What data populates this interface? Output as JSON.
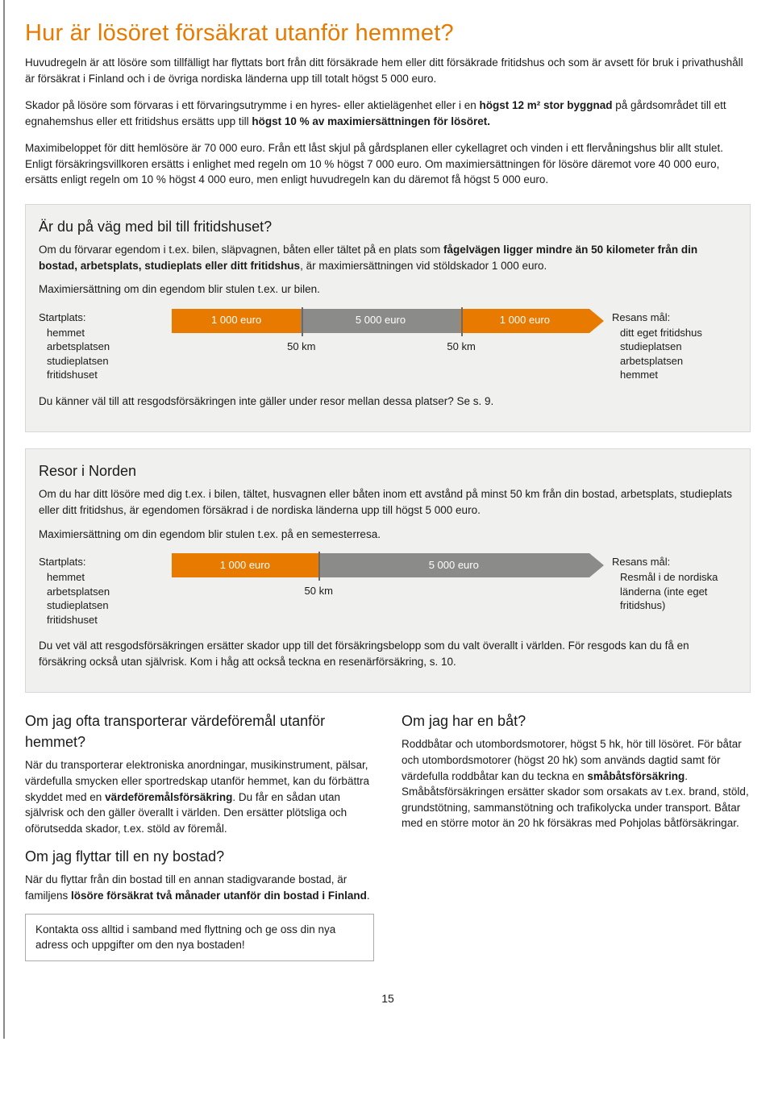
{
  "title": "Hur är lösöret försäkrat utanför hemmet?",
  "intro": {
    "p1": "Huvudregeln är att lösöre som tillfälligt har flyttats bort från ditt försäkrade hem eller ditt försäkrade fritidshus och som är avsett för bruk i privathushåll är försäkrat i Finland och i de övriga nordiska länderna upp till totalt högst 5 000 euro.",
    "p2_a": "Skador på lösöre som förvaras i ett förvaringsutrymme i en hyres- eller aktielägenhet eller i en ",
    "p2_b": "högst 12 m² stor byggnad",
    "p2_c": " på gårdsområdet till ett egnahemshus eller ett fritidshus ersätts upp till ",
    "p2_d": "högst 10 % av maximiersättningen för lösöret.",
    "p3": "Maximibeloppet för ditt hemlösöre är 70 000 euro. Från ett låst skjul på gårdsplanen eller cykellagret och vinden i ett flervåningshus blir allt stulet. Enligt försäkringsvillkoren ersätts i enlighet med regeln om 10 % högst 7 000 euro. Om maximiersättningen för lösöre däremot vore 40 000 euro, ersätts enligt regeln om 10 % högst 4 000 euro, men enligt huvudregeln kan du däremot få högst 5 000 euro."
  },
  "panel1": {
    "heading": "Är du på väg med bil till fritidshuset?",
    "p1_a": "Om du förvarar egendom i t.ex. bilen, släpvagnen, båten eller tältet på en plats som ",
    "p1_b": "fågelvägen ligger mindre än 50 kilometer från din bostad, arbetsplats, studieplats eller ditt fritidshus",
    "p1_c": ", är maximiersättningen vid stöldskador 1 000 euro.",
    "sub": "Maximiersättning om din egendom blir stulen t.ex. ur bilen.",
    "left": {
      "h": "Startplats:",
      "items": [
        "hemmet",
        "arbetsplatsen",
        "studieplatsen",
        "fritidshuset"
      ]
    },
    "right": {
      "h": "Resans mål:",
      "items": [
        "ditt eget fritidshus",
        "studieplatsen",
        "arbetsplatsen",
        "hemmet"
      ]
    },
    "diagram": {
      "segments": [
        {
          "label": "1 000 euro",
          "color": "orange",
          "width_pct": 30
        },
        {
          "label": "5 000 euro",
          "color": "gray",
          "width_pct": 37
        },
        {
          "label": "1 000 euro",
          "color": "orange",
          "width_pct": 30
        }
      ],
      "arrow_color": "orange",
      "ticks": [
        {
          "pos_pct": 30,
          "label": "50 km"
        },
        {
          "pos_pct": 67,
          "label": "50 km"
        }
      ]
    },
    "foot": "Du känner väl till att resgodsförsäkringen inte gäller under resor mellan dessa platser? Se s. 9."
  },
  "panel2": {
    "heading": "Resor i Norden",
    "p1": "Om du har ditt lösöre med dig t.ex. i bilen, tältet, husvagnen eller båten inom ett avstånd på minst 50 km från din bostad, arbetsplats, studieplats eller ditt fritidshus, är egendomen försäkrad i de nordiska länderna upp till högst 5 000 euro.",
    "sub": "Maximiersättning om din egendom blir stulen t.ex. på en semesterresa.",
    "left": {
      "h": "Startplats:",
      "items": [
        "hemmet",
        "arbetsplatsen",
        "studieplatsen",
        "fritidshuset"
      ]
    },
    "right": {
      "h": "Resans mål:",
      "items": [
        "Resmål i de nordiska",
        "länderna (inte eget",
        "fritidshus)"
      ]
    },
    "diagram": {
      "segments": [
        {
          "label": "1 000 euro",
          "color": "orange",
          "width_pct": 34
        },
        {
          "label": "5 000 euro",
          "color": "gray",
          "width_pct": 63
        }
      ],
      "arrow_color": "gray",
      "ticks": [
        {
          "pos_pct": 34,
          "label": "50 km"
        }
      ]
    },
    "foot": "Du vet väl att resgodsförsäkringen ersätter skador upp till det försäkringsbelopp som du valt överallt i världen. För resgods kan du få en försäkring också utan självrisk. Kom i håg att också teckna en resenärförsäkring, s. 10."
  },
  "left_col": {
    "h1": "Om jag ofta transporterar värdeföremål utanför hemmet?",
    "p1_a": "När du transporterar elektroniska anordningar, musikinstrument, pälsar, värdefulla smycken eller sportredskap utanför hemmet, kan du förbättra skyddet med en ",
    "p1_b": "värdeföremålsförsäkring",
    "p1_c": ". Du får en sådan utan självrisk och den gäller överallt i världen. Den ersätter plötsliga och oförutsedda skador, t.ex. stöld av föremål.",
    "h2": "Om jag flyttar till en ny bostad?",
    "p2_a": "När du flyttar från din bostad till en annan stadigvarande bostad, är familjens ",
    "p2_b": "lösöre försäkrat två månader utanför din bostad i Finland",
    "p2_c": ".",
    "notice": "Kontakta oss alltid i samband med flyttning och ge oss din nya adress och uppgifter om den nya bostaden!"
  },
  "right_col": {
    "h1": "Om jag har en båt?",
    "p1_a": "Roddbåtar och utombordsmotorer, högst 5 hk, hör till lösöret. För båtar och utombordsmotorer (högst 20 hk) som används dagtid samt för värdefulla roddbåtar kan du teckna en ",
    "p1_b": "småbåtsförsäkring",
    "p1_c": ". Småbåtsförsäkringen ersätter skador som orsakats av t.ex. brand, stöld, grundstötning, sammanstötning och trafikolycka under transport. Båtar med en större motor än 20 hk försäkras med Pohjolas båtförsäkringar."
  },
  "page_number": "15",
  "colors": {
    "accent": "#e87a00",
    "gray": "#8b8b8a",
    "panel_bg": "#f0f0ee",
    "panel_border": "#d8d8d4"
  }
}
